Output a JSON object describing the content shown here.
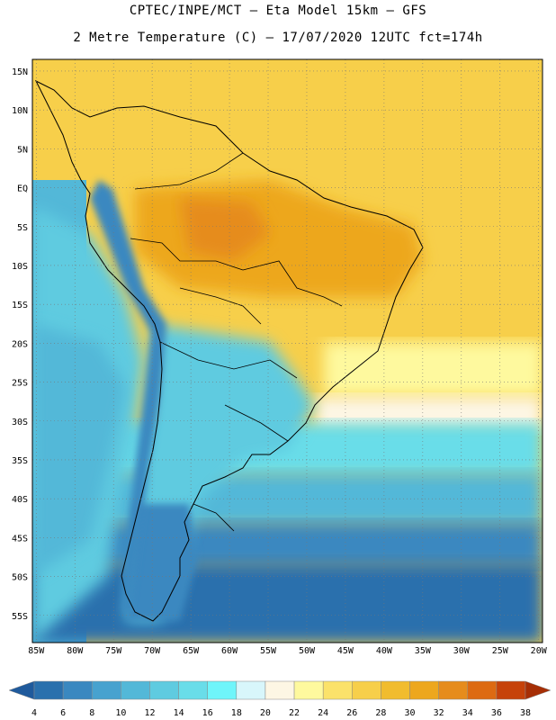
{
  "header": {
    "line1": "CPTEC/INPE/MCT –  Eta Model 15km – GFS",
    "line2": "2 Metre Temperature (C) – 17/07/2020 12UTC fct=174h"
  },
  "map": {
    "lat_labels": [
      "15N",
      "10N",
      "5N",
      "EQ",
      "5S",
      "10S",
      "15S",
      "20S",
      "25S",
      "30S",
      "35S",
      "40S",
      "45S",
      "50S",
      "55S"
    ],
    "lat_values": [
      15,
      10,
      5,
      0,
      -5,
      -10,
      -15,
      -20,
      -25,
      -30,
      -35,
      -40,
      -45,
      -50,
      -55
    ],
    "lon_labels": [
      "85W",
      "80W",
      "75W",
      "70W",
      "65W",
      "60W",
      "55W",
      "50W",
      "45W",
      "40W",
      "35W",
      "30W",
      "25W",
      "20W"
    ],
    "lon_values": [
      -85,
      -80,
      -75,
      -70,
      -65,
      -60,
      -55,
      -50,
      -45,
      -40,
      -35,
      -30,
      -25,
      -20
    ],
    "extent": {
      "lon_min": -85.5,
      "lon_max": -19.5,
      "lat_min": -58.5,
      "lat_max": 16.5
    }
  },
  "colorbar": {
    "colors": [
      "#1f5a9c",
      "#2a70ad",
      "#3a88c0",
      "#47a2cf",
      "#53b8d8",
      "#5fcbe0",
      "#69dde9",
      "#6ff5fa",
      "#d8f6fb",
      "#fdf6e4",
      "#fef99e",
      "#fbe26a",
      "#f7cf4a",
      "#f1bc2e",
      "#eda71d",
      "#e68c1c",
      "#dd6a12",
      "#c6420a",
      "#a62e05"
    ],
    "labels": [
      "4",
      "6",
      "8",
      "10",
      "12",
      "14",
      "16",
      "18",
      "20",
      "22",
      "24",
      "26",
      "28",
      "30",
      "32",
      "34",
      "36",
      "38"
    ]
  }
}
